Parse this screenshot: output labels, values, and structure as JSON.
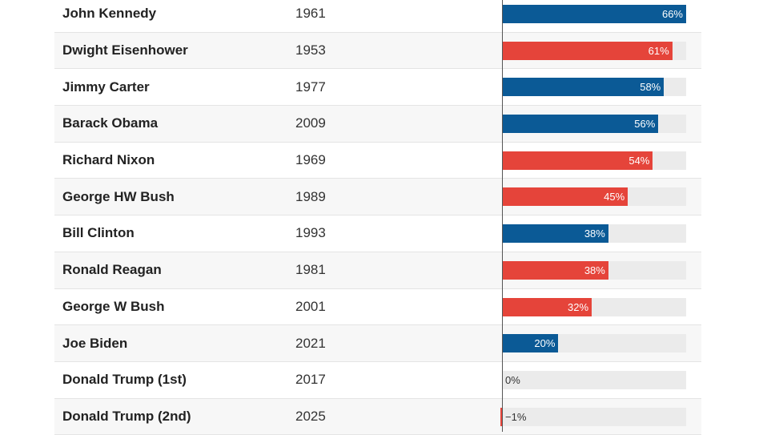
{
  "colors": {
    "democrat": "#0b5a96",
    "republican": "#e5443a",
    "track": "#ebebeb"
  },
  "chart_data": {
    "type": "bar",
    "orientation": "horizontal",
    "xlim": [
      -1,
      66
    ],
    "rows": [
      {
        "name": "John Kennedy",
        "year": "1961",
        "value": 66,
        "label": "66%",
        "party": "democrat"
      },
      {
        "name": "Dwight Eisenhower",
        "year": "1953",
        "value": 61,
        "label": "61%",
        "party": "republican"
      },
      {
        "name": "Jimmy Carter",
        "year": "1977",
        "value": 58,
        "label": "58%",
        "party": "democrat"
      },
      {
        "name": "Barack Obama",
        "year": "2009",
        "value": 56,
        "label": "56%",
        "party": "democrat"
      },
      {
        "name": "Richard Nixon",
        "year": "1969",
        "value": 54,
        "label": "54%",
        "party": "republican"
      },
      {
        "name": "George HW Bush",
        "year": "1989",
        "value": 45,
        "label": "45%",
        "party": "republican"
      },
      {
        "name": "Bill Clinton",
        "year": "1993",
        "value": 38,
        "label": "38%",
        "party": "democrat"
      },
      {
        "name": "Ronald Reagan",
        "year": "1981",
        "value": 38,
        "label": "38%",
        "party": "republican"
      },
      {
        "name": "George W Bush",
        "year": "2001",
        "value": 32,
        "label": "32%",
        "party": "republican"
      },
      {
        "name": "Joe Biden",
        "year": "2021",
        "value": 20,
        "label": "20%",
        "party": "democrat"
      },
      {
        "name": "Donald Trump (1st)",
        "year": "2017",
        "value": 0,
        "label": "0%",
        "party": "republican"
      },
      {
        "name": "Donald Trump (2nd)",
        "year": "2025",
        "value": -1,
        "label": "−1%",
        "party": "republican"
      }
    ]
  }
}
